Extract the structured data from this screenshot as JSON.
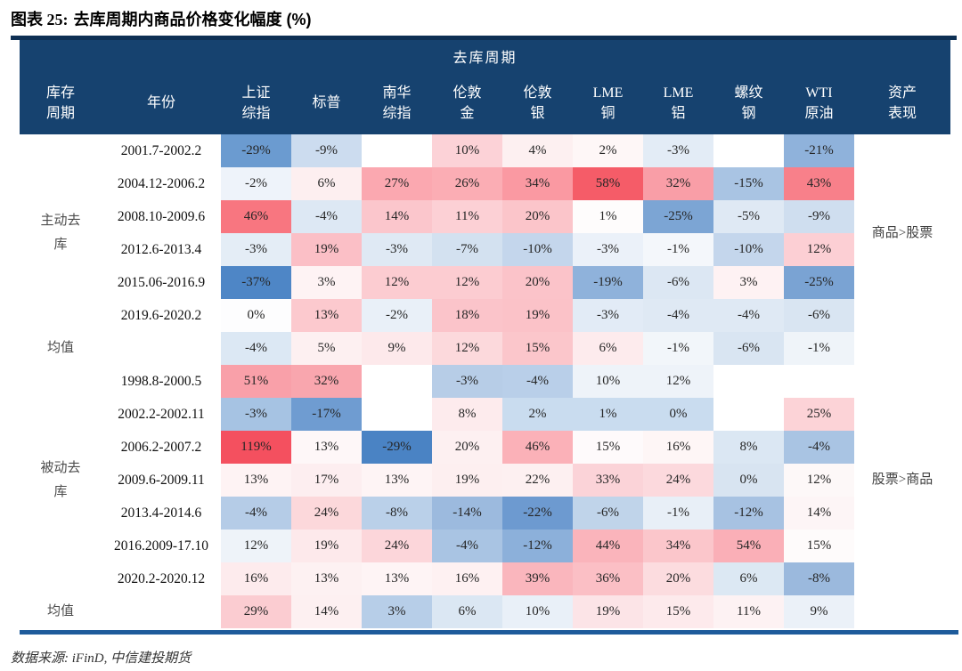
{
  "title": {
    "label": "图表 25:",
    "text": "去库周期内商品价格变化幅度 (%)"
  },
  "source_note": "数据来源: iFinD, 中信建投期货",
  "colors": {
    "header_bg": "#16426f",
    "header_text": "#ffffff",
    "top_rule": "#0e3054",
    "bottom_rule": "#1e5b9b",
    "strong_red": "#f4505f",
    "strong_blue": "#4a83c4"
  },
  "chart_data": {
    "type": "heatmap",
    "span_header": "去库周期",
    "columns": [
      [
        "库存",
        "周期"
      ],
      [
        "年份"
      ],
      [
        "上证",
        "综指"
      ],
      [
        "标普"
      ],
      [
        "南华",
        "综指"
      ],
      [
        "伦敦",
        "金"
      ],
      [
        "伦敦",
        "银"
      ],
      [
        "LME",
        "铜"
      ],
      [
        "LME",
        "铝"
      ],
      [
        "螺纹",
        "钢"
      ],
      [
        "WTI",
        "原油"
      ],
      [
        "资产",
        "表现"
      ]
    ],
    "value_columns": [
      "上证综指",
      "标普",
      "南华综指",
      "伦敦金",
      "伦敦银",
      "LME铜",
      "LME铝",
      "螺纹钢",
      "WTI原油"
    ],
    "rows": [
      {
        "phase": "主动去库",
        "phase_rowspan": 6,
        "asset": "商品>股票",
        "asset_rowspan": 6,
        "year": "2001.7-2002.2",
        "cells": [
          {
            "v": "-29%",
            "bg": "#6b9bd0"
          },
          {
            "v": "-9%",
            "bg": "#ccdcef"
          },
          {
            "v": "",
            "bg": "#ffffff"
          },
          {
            "v": "10%",
            "bg": "#fcd2d7"
          },
          {
            "v": "4%",
            "bg": "#fdf0f1"
          },
          {
            "v": "2%",
            "bg": "#fef7f7"
          },
          {
            "v": "-3%",
            "bg": "#e3ecf6"
          },
          {
            "v": "",
            "bg": "#ffffff"
          },
          {
            "v": "-21%",
            "bg": "#8fb2db"
          }
        ]
      },
      {
        "year": "2004.12-2006.2",
        "cells": [
          {
            "v": "-2%",
            "bg": "#eef3fa"
          },
          {
            "v": "6%",
            "bg": "#fdeff0"
          },
          {
            "v": "27%",
            "bg": "#fba8b0"
          },
          {
            "v": "26%",
            "bg": "#fbadb4"
          },
          {
            "v": "34%",
            "bg": "#fa99a2"
          },
          {
            "v": "58%",
            "bg": "#f55c68"
          },
          {
            "v": "32%",
            "bg": "#f99ea7"
          },
          {
            "v": "-15%",
            "bg": "#a9c4e3"
          },
          {
            "v": "43%",
            "bg": "#f8808a"
          }
        ]
      },
      {
        "year": "2008.10-2009.6",
        "cells": [
          {
            "v": "46%",
            "bg": "#f87680"
          },
          {
            "v": "-4%",
            "bg": "#dde8f4"
          },
          {
            "v": "14%",
            "bg": "#fbc6cc"
          },
          {
            "v": "11%",
            "bg": "#fcd0d5"
          },
          {
            "v": "20%",
            "bg": "#fbc5ca"
          },
          {
            "v": "1%",
            "bg": "#fefcfc"
          },
          {
            "v": "-25%",
            "bg": "#7ca5d4"
          },
          {
            "v": "-5%",
            "bg": "#dfe9f4"
          },
          {
            "v": "-9%",
            "bg": "#cfdeef"
          }
        ]
      },
      {
        "year": "2012.6-2013.4",
        "cells": [
          {
            "v": "-3%",
            "bg": "#e4edf6"
          },
          {
            "v": "19%",
            "bg": "#fbbfc6"
          },
          {
            "v": "-3%",
            "bg": "#dfe9f4"
          },
          {
            "v": "-7%",
            "bg": "#d3e1f0"
          },
          {
            "v": "-10%",
            "bg": "#c4d6ec"
          },
          {
            "v": "-3%",
            "bg": "#ebf1f9"
          },
          {
            "v": "-1%",
            "bg": "#f4f7fb"
          },
          {
            "v": "-10%",
            "bg": "#c4d6ec"
          },
          {
            "v": "12%",
            "bg": "#fccfd4"
          }
        ]
      },
      {
        "year": "2015.06-2016.9",
        "cells": [
          {
            "v": "-37%",
            "bg": "#4e86c6"
          },
          {
            "v": "3%",
            "bg": "#fef3f4"
          },
          {
            "v": "12%",
            "bg": "#fcccd1"
          },
          {
            "v": "12%",
            "bg": "#fcccd1"
          },
          {
            "v": "20%",
            "bg": "#fbc3c9"
          },
          {
            "v": "-19%",
            "bg": "#8fb2db"
          },
          {
            "v": "-6%",
            "bg": "#dce7f3"
          },
          {
            "v": "3%",
            "bg": "#fef2f3"
          },
          {
            "v": "-25%",
            "bg": "#7aa3d3"
          }
        ]
      },
      {
        "year": "2019.6-2020.2",
        "cells": [
          {
            "v": "0%",
            "bg": "#fdfdfe"
          },
          {
            "v": "13%",
            "bg": "#fcc9ce"
          },
          {
            "v": "-2%",
            "bg": "#e9f0f8"
          },
          {
            "v": "18%",
            "bg": "#fbc4ca"
          },
          {
            "v": "19%",
            "bg": "#fbc2c8"
          },
          {
            "v": "-3%",
            "bg": "#e2ebf6"
          },
          {
            "v": "-4%",
            "bg": "#dfe9f4"
          },
          {
            "v": "-4%",
            "bg": "#dfe9f4"
          },
          {
            "v": "-6%",
            "bg": "#d9e5f2"
          }
        ]
      },
      {
        "phase": "均值",
        "phase_rowspan": 1,
        "asset": "",
        "asset_rowspan": 1,
        "year": "",
        "cells": [
          {
            "v": "-4%",
            "bg": "#dce8f4"
          },
          {
            "v": "5%",
            "bg": "#fdf0f1"
          },
          {
            "v": "9%",
            "bg": "#fde9eb"
          },
          {
            "v": "12%",
            "bg": "#fcd9dc"
          },
          {
            "v": "15%",
            "bg": "#fbc6cb"
          },
          {
            "v": "6%",
            "bg": "#fdebed"
          },
          {
            "v": "-1%",
            "bg": "#f2f6fa"
          },
          {
            "v": "-6%",
            "bg": "#d9e5f2"
          },
          {
            "v": "-1%",
            "bg": "#eff4f9"
          }
        ]
      },
      {
        "phase": "被动去库",
        "phase_rowspan": 7,
        "asset": "股票>商品",
        "asset_rowspan": 7,
        "year": "1998.8-2000.5",
        "cells": [
          {
            "v": "51%",
            "bg": "#f9a0a9"
          },
          {
            "v": "32%",
            "bg": "#f9a6ae"
          },
          {
            "v": "",
            "bg": "#ffffff"
          },
          {
            "v": "-3%",
            "bg": "#b7cde7"
          },
          {
            "v": "-4%",
            "bg": "#b9cfe9"
          },
          {
            "v": "10%",
            "bg": "#eef3f9"
          },
          {
            "v": "12%",
            "bg": "#eef3f9"
          },
          {
            "v": "",
            "bg": "#ffffff"
          },
          {
            "v": "",
            "bg": "#ffffff"
          }
        ]
      },
      {
        "year": "2002.2-2002.11",
        "cells": [
          {
            "v": "-3%",
            "bg": "#a6c3e3"
          },
          {
            "v": "-17%",
            "bg": "#6f9cd1"
          },
          {
            "v": "",
            "bg": "#ffffff"
          },
          {
            "v": "8%",
            "bg": "#fdebed"
          },
          {
            "v": "2%",
            "bg": "#c9dcef"
          },
          {
            "v": "1%",
            "bg": "#c9dcef"
          },
          {
            "v": "0%",
            "bg": "#c9dcef"
          },
          {
            "v": "",
            "bg": "#ffffff"
          },
          {
            "v": "25%",
            "bg": "#fcd3d7"
          }
        ]
      },
      {
        "year": "2006.2-2007.2",
        "cells": [
          {
            "v": "119%",
            "bg": "#f4505f"
          },
          {
            "v": "13%",
            "bg": "#fef7f8"
          },
          {
            "v": "-29%",
            "bg": "#4a83c4"
          },
          {
            "v": "20%",
            "bg": "#fdf0f1"
          },
          {
            "v": "46%",
            "bg": "#fbb1b8"
          },
          {
            "v": "15%",
            "bg": "#fefafb"
          },
          {
            "v": "16%",
            "bg": "#fef6f6"
          },
          {
            "v": "8%",
            "bg": "#dbe7f3"
          },
          {
            "v": "-4%",
            "bg": "#a9c4e3"
          }
        ]
      },
      {
        "year": "2009.6-2009.11",
        "cells": [
          {
            "v": "13%",
            "bg": "#fef3f4"
          },
          {
            "v": "17%",
            "bg": "#fdeef0"
          },
          {
            "v": "13%",
            "bg": "#fef4f5"
          },
          {
            "v": "19%",
            "bg": "#fdeff0"
          },
          {
            "v": "22%",
            "bg": "#fdf0f1"
          },
          {
            "v": "33%",
            "bg": "#fbd3d8"
          },
          {
            "v": "24%",
            "bg": "#fcd9dd"
          },
          {
            "v": "0%",
            "bg": "#d8e4f1"
          },
          {
            "v": "12%",
            "bg": "#fdf8f8"
          }
        ]
      },
      {
        "year": "2013.4-2014.6",
        "cells": [
          {
            "v": "-4%",
            "bg": "#b5cce7"
          },
          {
            "v": "24%",
            "bg": "#fcd8db"
          },
          {
            "v": "-8%",
            "bg": "#bad0e9"
          },
          {
            "v": "-14%",
            "bg": "#9cbade"
          },
          {
            "v": "-22%",
            "bg": "#6d9ad0"
          },
          {
            "v": "-6%",
            "bg": "#c0d4ea"
          },
          {
            "v": "-1%",
            "bg": "#e8eff7"
          },
          {
            "v": "-12%",
            "bg": "#a7c2e2"
          },
          {
            "v": "14%",
            "bg": "#fdf5f6"
          }
        ]
      },
      {
        "year": "2016.2009-17.10",
        "cells": [
          {
            "v": "12%",
            "bg": "#eef3f9"
          },
          {
            "v": "19%",
            "bg": "#fde9eb"
          },
          {
            "v": "24%",
            "bg": "#fcd6da"
          },
          {
            "v": "-4%",
            "bg": "#a9c4e3"
          },
          {
            "v": "-12%",
            "bg": "#8cb0da"
          },
          {
            "v": "44%",
            "bg": "#fab4bb"
          },
          {
            "v": "34%",
            "bg": "#fbc6cb"
          },
          {
            "v": "54%",
            "bg": "#faafb7"
          },
          {
            "v": "15%",
            "bg": "#fefbfb"
          }
        ]
      },
      {
        "year": "2020.2-2020.12",
        "cells": [
          {
            "v": "16%",
            "bg": "#fdebed"
          },
          {
            "v": "13%",
            "bg": "#fdf1f2"
          },
          {
            "v": "13%",
            "bg": "#fef4f5"
          },
          {
            "v": "16%",
            "bg": "#fef1f2"
          },
          {
            "v": "39%",
            "bg": "#fab6bd"
          },
          {
            "v": "36%",
            "bg": "#fbbfc5"
          },
          {
            "v": "20%",
            "bg": "#fcdcdf"
          },
          {
            "v": "6%",
            "bg": "#dce8f3"
          },
          {
            "v": "-8%",
            "bg": "#9bb9dd"
          }
        ]
      },
      {
        "phase": "均值",
        "phase_rowspan": 1,
        "asset": "",
        "asset_rowspan": 1,
        "year": "",
        "cells": [
          {
            "v": "29%",
            "bg": "#fbccd1"
          },
          {
            "v": "14%",
            "bg": "#fdf0f1"
          },
          {
            "v": "3%",
            "bg": "#b7cee8"
          },
          {
            "v": "6%",
            "bg": "#dbe7f3"
          },
          {
            "v": "10%",
            "bg": "#e9f0f8"
          },
          {
            "v": "19%",
            "bg": "#fce4e7"
          },
          {
            "v": "15%",
            "bg": "#fdeaec"
          },
          {
            "v": "11%",
            "bg": "#fdf2f3"
          },
          {
            "v": "9%",
            "bg": "#ebf1f8"
          }
        ]
      }
    ]
  }
}
